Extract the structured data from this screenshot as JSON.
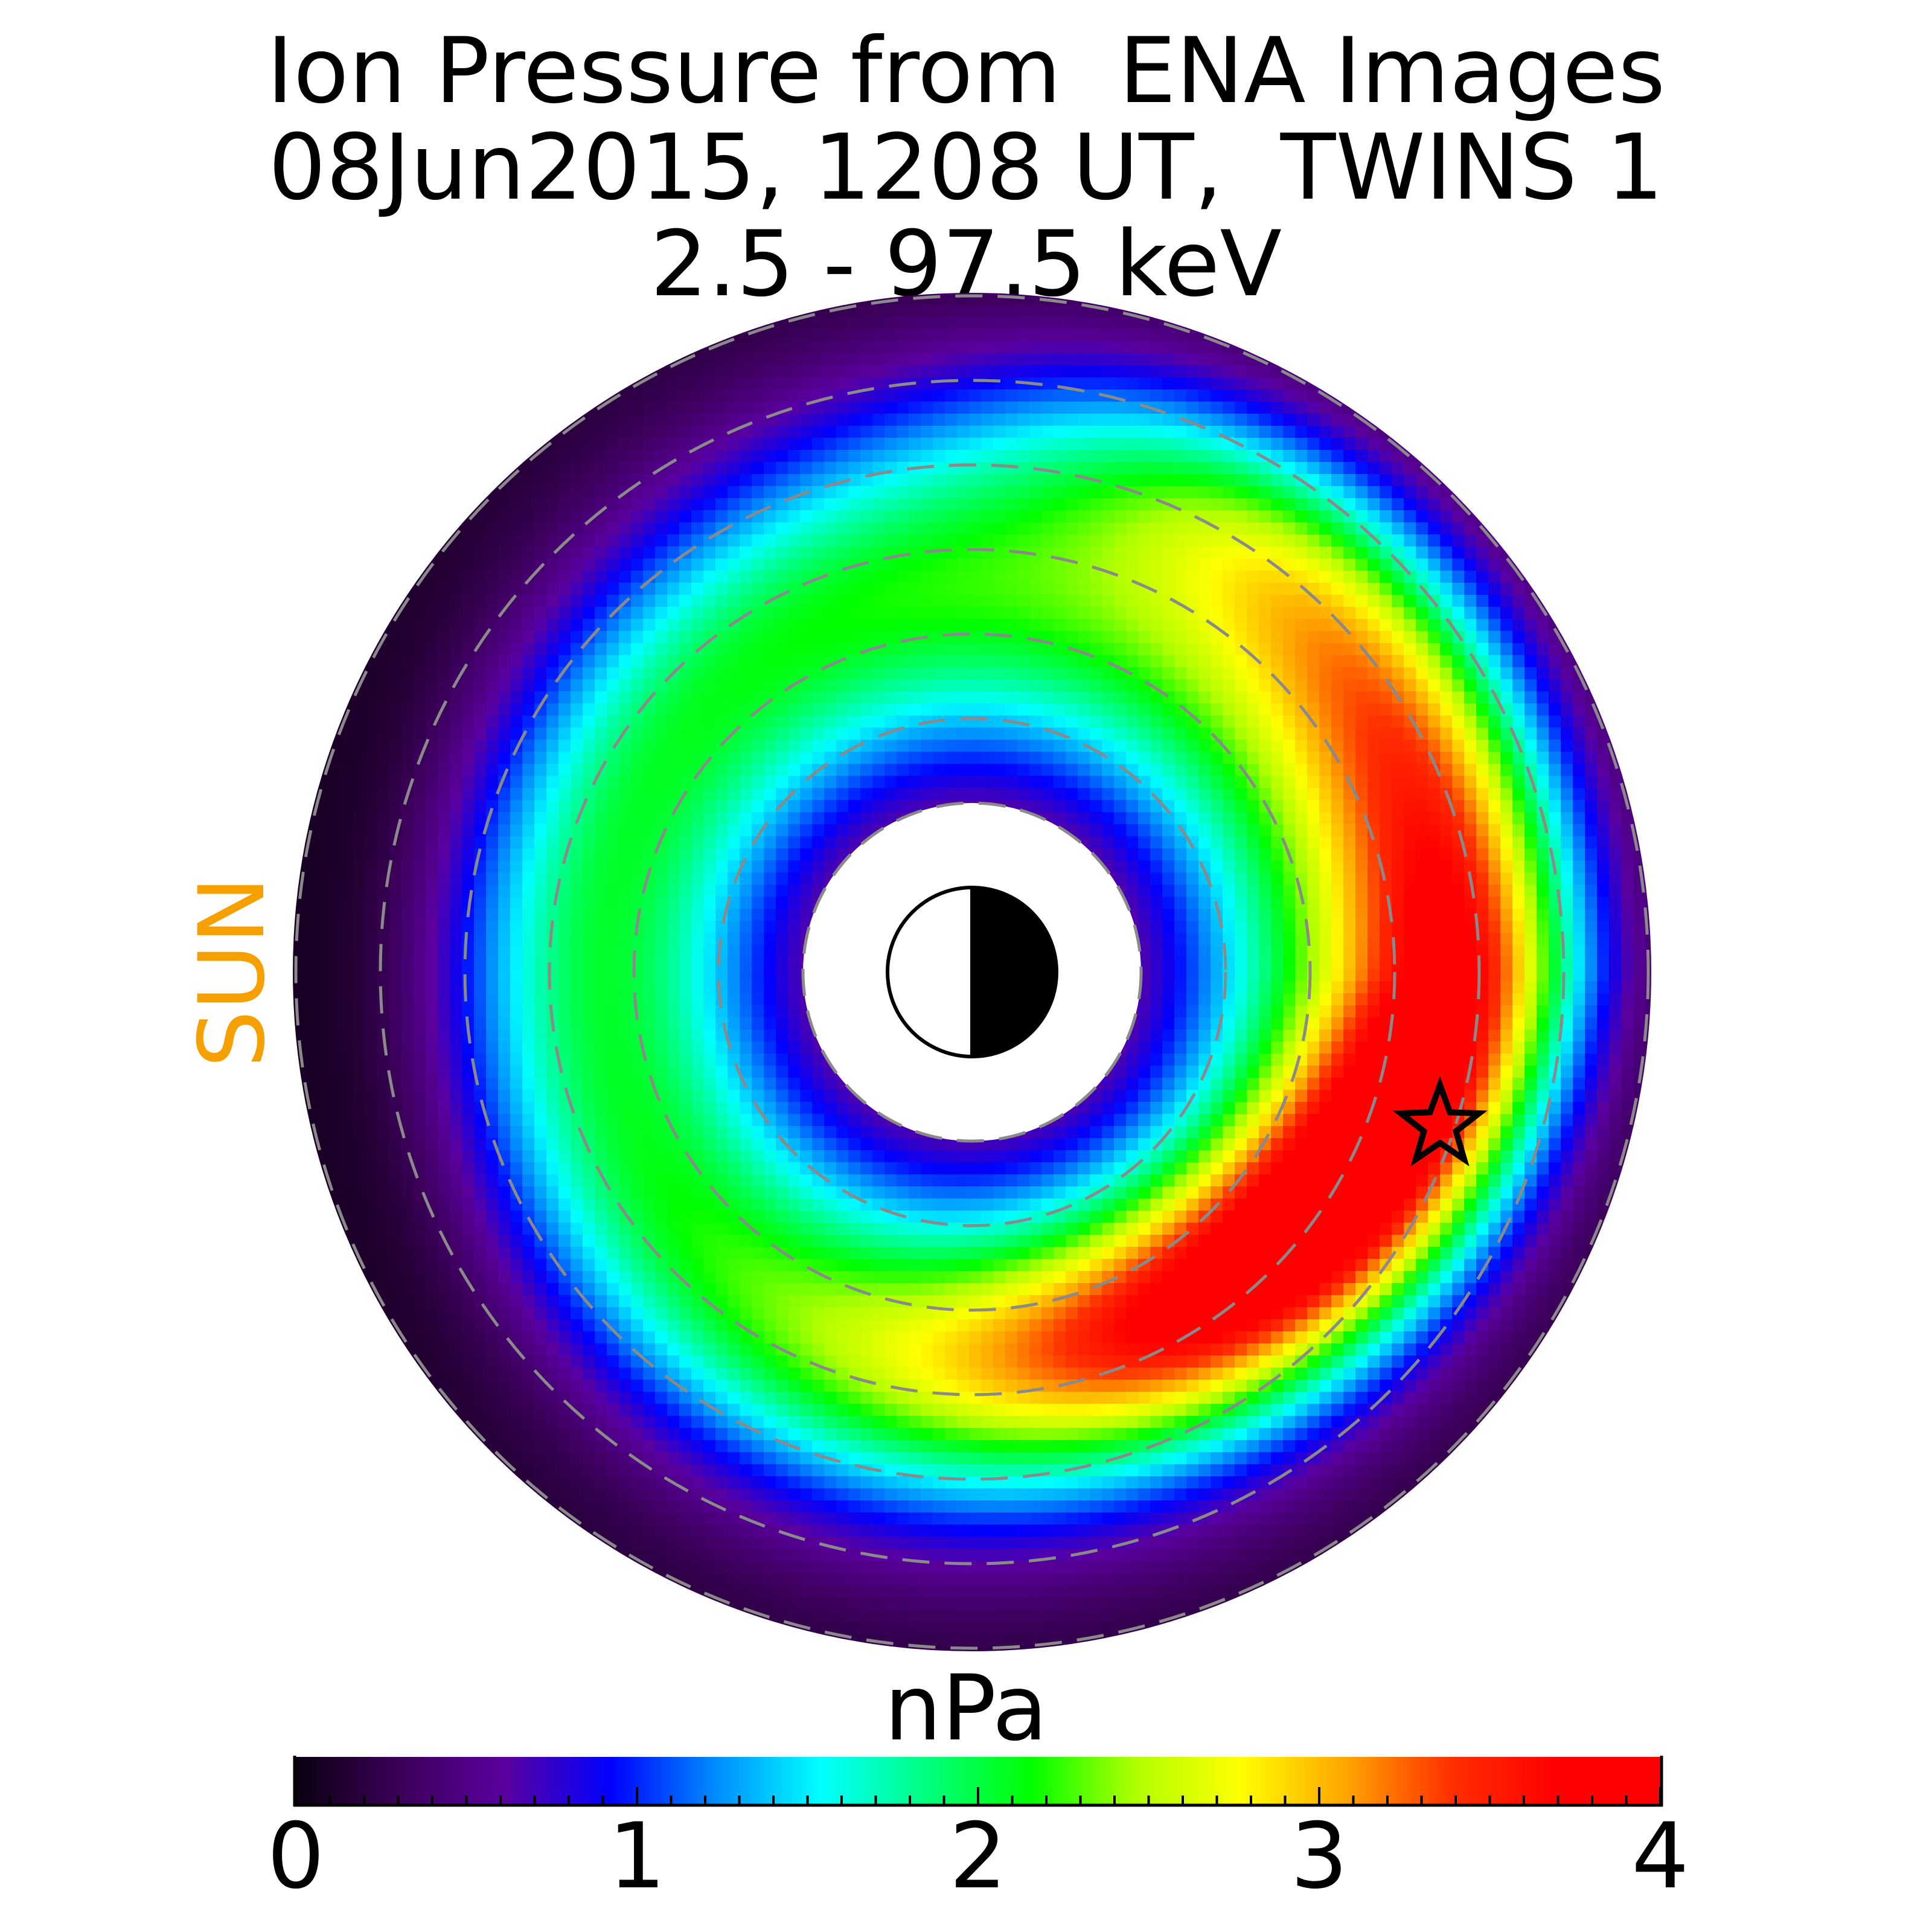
{
  "chart_data": {
    "type": "heatmap",
    "title_lines": [
      "Ion Pressure from  ENA Images",
      "08Jun2015, 1208 UT,  TWINS 1",
      "2.5 - 97.5 keV"
    ],
    "side_label": "SUN",
    "colorbar": {
      "label": "nPa",
      "range": [
        0,
        4
      ],
      "ticks": [
        0,
        1,
        2,
        3,
        4
      ],
      "tick_labels": [
        "0",
        "1",
        "2",
        "3",
        "4"
      ],
      "minor_ticks_per_major": 10,
      "colors": [
        "#0b0010",
        "#3c005a",
        "#5a00a0",
        "#0000ff",
        "#008cff",
        "#00ffff",
        "#00ff80",
        "#00ff00",
        "#b0ff00",
        "#ffff00",
        "#ffa500",
        "#ff3000",
        "#ff0000",
        "#ff0000"
      ]
    },
    "marker": "star",
    "sun_colour": "#f6a000"
  }
}
